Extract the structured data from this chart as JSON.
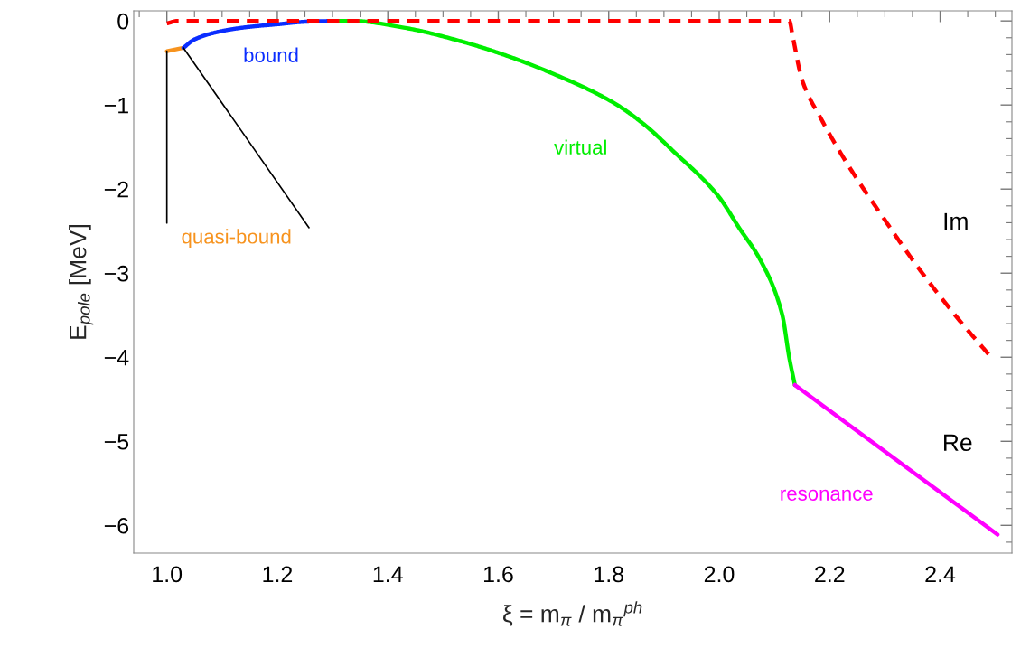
{
  "chart_data": {
    "type": "line",
    "xlabel": "ξ = m$_{π}$ / m$_{π}$$^{ph}$",
    "ylabel": "E$_{pole}$ [MeV]",
    "xlim": [
      0.94,
      2.53
    ],
    "ylim": [
      -6.33,
      0.12
    ],
    "xticks": [
      {
        "value": 1.0,
        "label": "1.0"
      },
      1.2,
      1.4,
      1.6,
      1.8,
      {
        "value": 2.0,
        "label": "2.0"
      },
      2.2,
      2.4
    ],
    "yticks": [
      {
        "value": 0,
        "label": "0"
      },
      {
        "value": -1,
        "label": "−1"
      },
      {
        "value": -2,
        "label": "−2"
      },
      {
        "value": -3,
        "label": "−3"
      },
      {
        "value": -4,
        "label": "−4"
      },
      {
        "value": -5,
        "label": "−5"
      },
      {
        "value": -6,
        "label": "−6"
      }
    ],
    "grid": false,
    "legend": false,
    "series": [
      {
        "name": "quasi-bound",
        "color": "#f7931e",
        "x": [
          1.0,
          1.03
        ],
        "values": [
          -0.36,
          -0.32
        ]
      },
      {
        "name": "bound",
        "color": "#0a2dff",
        "x": [
          1.03,
          1.05,
          1.1,
          1.15,
          1.2,
          1.25,
          1.3
        ],
        "values": [
          -0.32,
          -0.22,
          -0.12,
          -0.07,
          -0.04,
          -0.01,
          0
        ]
      },
      {
        "name": "virtual",
        "color": "#00ee00",
        "x": [
          1.3,
          1.337,
          1.429,
          1.537,
          1.618,
          1.7,
          1.808,
          1.862,
          1.917,
          1.998,
          2.036,
          2.075,
          2.114,
          2.127,
          2.137
        ],
        "values": [
          0,
          0,
          -0.08,
          -0.25,
          -0.42,
          -0.63,
          -0.97,
          -1.22,
          -1.55,
          -2.08,
          -2.46,
          -2.85,
          -3.49,
          -4.01,
          -4.33
        ]
      },
      {
        "name": "resonance",
        "color": "#ff00ff",
        "x": [
          2.137,
          2.504
        ],
        "values": [
          -4.33,
          -6.11
        ]
      },
      {
        "color": "#ff0000",
        "line_style": "dashed",
        "x": [
          1.0,
          1.02,
          1.5,
          2.0,
          2.127,
          2.133,
          2.15,
          2.185,
          2.231,
          2.296,
          2.361,
          2.426,
          2.491
        ],
        "values": [
          -0.03,
          0,
          0,
          0,
          0,
          -0.18,
          -0.7,
          -1.17,
          -1.69,
          -2.33,
          -2.94,
          -3.49,
          -3.99
        ]
      }
    ],
    "annotations": [
      "Im",
      "Re"
    ]
  }
}
